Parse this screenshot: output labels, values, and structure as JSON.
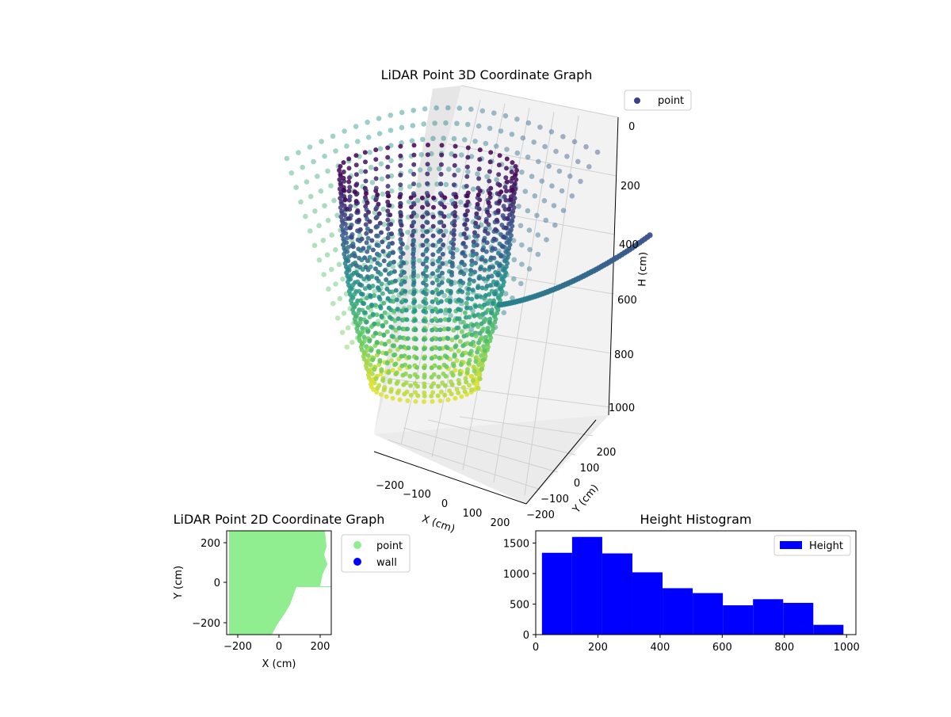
{
  "chart_data": [
    {
      "type": "scatter3d",
      "title": "LiDAR Point 3D Coordinate Graph",
      "xlabel": "X (cm)",
      "ylabel": "Y (cm)",
      "zlabel": "H (cm)",
      "xticks": [
        "−200",
        "−100",
        "0",
        "100",
        "200"
      ],
      "yticks": [
        "−200",
        "−100",
        "0",
        "100",
        "200"
      ],
      "zticks": [
        "0",
        "200",
        "400",
        "600",
        "800",
        "1000"
      ],
      "xlim": [
        -250,
        250
      ],
      "ylim": [
        -250,
        250
      ],
      "zlim": [
        1000,
        0
      ],
      "legend": [
        "point"
      ],
      "colormap": "viridis",
      "colors": {
        "low": "#440154",
        "mid": "#21918c",
        "high": "#fde725",
        "legend_marker": "#3b3f8c"
      }
    },
    {
      "type": "scatter",
      "title": "LiDAR Point 2D Coordinate Graph",
      "xlabel": "X (cm)",
      "ylabel": "Y (cm)",
      "xlim": [
        -250,
        250
      ],
      "ylim": [
        -250,
        250
      ],
      "xticks": [
        "−200",
        "0",
        "200"
      ],
      "yticks": [
        "−200",
        "0",
        "200"
      ],
      "series": [
        {
          "name": "point",
          "color": "#90ee90"
        },
        {
          "name": "wall",
          "color": "#0000ff"
        }
      ]
    },
    {
      "type": "bar",
      "title": "Height Histogram",
      "legend": [
        "Height"
      ],
      "bar_color": "#0000ff",
      "bin_edges": [
        20,
        117,
        214,
        311,
        408,
        505,
        602,
        699,
        796,
        893,
        990
      ],
      "values": [
        1340,
        1600,
        1330,
        1020,
        760,
        680,
        480,
        580,
        520,
        160
      ],
      "xlim": [
        0,
        1030
      ],
      "ylim": [
        0,
        1700
      ],
      "xticks": [
        0,
        200,
        400,
        600,
        800,
        1000
      ],
      "yticks": [
        0,
        500,
        1000,
        1500
      ]
    }
  ]
}
